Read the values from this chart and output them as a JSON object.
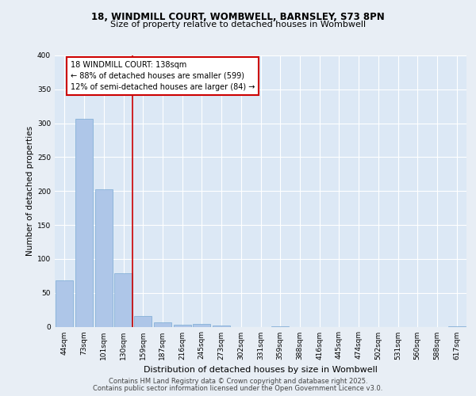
{
  "title_line1": "18, WINDMILL COURT, WOMBWELL, BARNSLEY, S73 8PN",
  "title_line2": "Size of property relative to detached houses in Wombwell",
  "xlabel": "Distribution of detached houses by size in Wombwell",
  "ylabel": "Number of detached properties",
  "categories": [
    "44sqm",
    "73sqm",
    "101sqm",
    "130sqm",
    "159sqm",
    "187sqm",
    "216sqm",
    "245sqm",
    "273sqm",
    "302sqm",
    "331sqm",
    "359sqm",
    "388sqm",
    "416sqm",
    "445sqm",
    "474sqm",
    "502sqm",
    "531sqm",
    "560sqm",
    "588sqm",
    "617sqm"
  ],
  "values": [
    68,
    307,
    203,
    79,
    16,
    7,
    3,
    4,
    2,
    0,
    0,
    1,
    0,
    0,
    0,
    0,
    0,
    0,
    0,
    0,
    1
  ],
  "bar_color": "#aec6e8",
  "bar_edge_color": "#7aaad4",
  "annotation_text": "18 WINDMILL COURT: 138sqm\n← 88% of detached houses are smaller (599)\n12% of semi-detached houses are larger (84) →",
  "annotation_box_color": "#ffffff",
  "annotation_box_edge_color": "#cc0000",
  "vline_color": "#cc0000",
  "ylim": [
    0,
    400
  ],
  "yticks": [
    0,
    50,
    100,
    150,
    200,
    250,
    300,
    350,
    400
  ],
  "footer_line1": "Contains HM Land Registry data © Crown copyright and database right 2025.",
  "footer_line2": "Contains public sector information licensed under the Open Government Licence v3.0.",
  "background_color": "#e8eef5",
  "plot_background_color": "#dce8f5"
}
